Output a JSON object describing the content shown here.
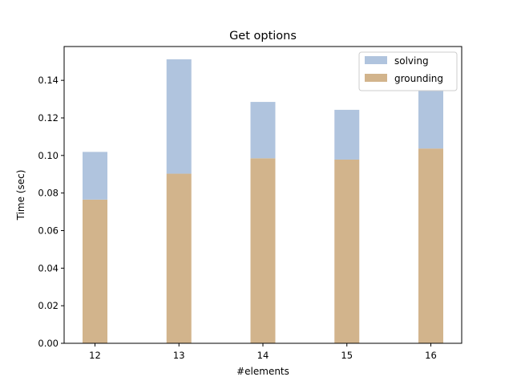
{
  "chart_data": {
    "type": "bar",
    "stacked": true,
    "title": "Get options",
    "xlabel": "#elements",
    "ylabel": "Time (sec)",
    "categories": [
      "12",
      "13",
      "14",
      "15",
      "16"
    ],
    "series": [
      {
        "name": "grounding",
        "color": "#d2b48c",
        "values": [
          0.0765,
          0.0903,
          0.0985,
          0.0978,
          0.1037
        ]
      },
      {
        "name": "solving",
        "color": "#b0c4de",
        "values": [
          0.0254,
          0.0609,
          0.03,
          0.0265,
          0.0309
        ]
      }
    ],
    "ylim": [
      0,
      0.158
    ],
    "yticks": [
      "0.00",
      "0.02",
      "0.04",
      "0.06",
      "0.08",
      "0.10",
      "0.12",
      "0.14"
    ],
    "legend": {
      "placement": "top-right",
      "entries": [
        {
          "label": "solving",
          "color": "#b0c4de"
        },
        {
          "label": "grounding",
          "color": "#d2b48c"
        }
      ]
    },
    "grid": false
  }
}
